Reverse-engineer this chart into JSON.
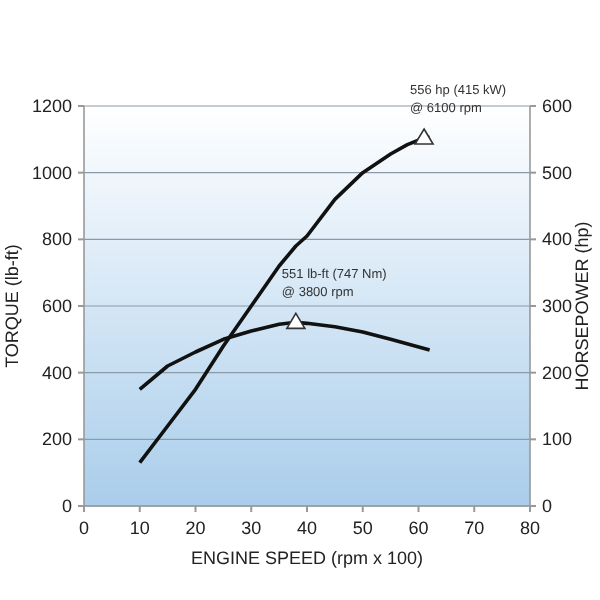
{
  "chart_data": {
    "type": "line",
    "xlabel": "ENGINE SPEED (rpm x 100)",
    "ylabel": "TORQUE (lb-ft)",
    "y2label": "HORSEPOWER (hp)",
    "xlim": [
      0,
      80
    ],
    "xticks": [
      0,
      10,
      20,
      30,
      40,
      50,
      60,
      70,
      80
    ],
    "ylim": [
      0,
      1200
    ],
    "yticks": [
      0,
      200,
      400,
      600,
      800,
      1000,
      1200
    ],
    "y2lim": [
      0,
      600
    ],
    "y2ticks": [
      0,
      100,
      200,
      300,
      400,
      500,
      600
    ],
    "grid": "y",
    "marker": "none",
    "line_style": "solid",
    "series": [
      {
        "color": "#111111",
        "x": [
          10,
          15,
          20,
          25,
          30,
          35,
          38,
          40,
          45,
          50,
          55,
          62
        ],
        "values": [
          350,
          420,
          462,
          500,
          525,
          545,
          551,
          548,
          538,
          522,
          500,
          468
        ]
      },
      {
        "color": "#111111",
        "axis": "y2",
        "x": [
          10,
          15,
          20,
          25,
          30,
          35,
          38,
          40,
          45,
          50,
          55,
          58,
          61,
          62
        ],
        "values": [
          65,
          120,
          175,
          240,
          300,
          360,
          390,
          405,
          460,
          500,
          528,
          542,
          552,
          553
        ]
      },
      {
        "type": "scatter",
        "marker": "triangle",
        "color": "#ffffff",
        "x": [
          38
        ],
        "values": [
          551
        ]
      },
      {
        "type": "scatter",
        "marker": "triangle",
        "color": "#ffffff",
        "axis": "y2",
        "x": [
          61
        ],
        "values": [
          552
        ]
      }
    ],
    "annotations": [
      {
        "text": "551 lb-ft (747 Nm)\n@ 3800 rpm",
        "x": 38,
        "y": 551
      },
      {
        "text": "556 hp (415 kW)\n@ 6100 rpm",
        "x": 61,
        "y": 1104
      }
    ]
  }
}
